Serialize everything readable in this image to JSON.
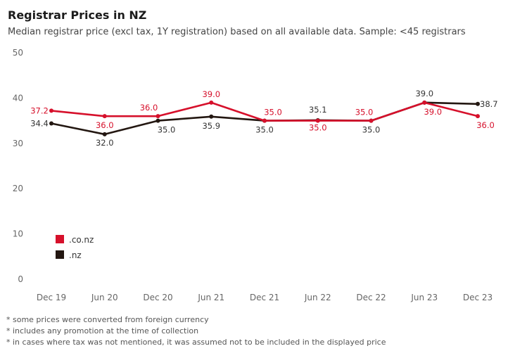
{
  "chart_data": {
    "type": "line",
    "title": "Registrar Prices in NZ",
    "subtitle": "Median registrar price (excl tax, 1Y registration) based on all available data. Sample: <45 registrars",
    "categories": [
      "Dec 19",
      "Jun 20",
      "Dec 20",
      "Jun 21",
      "Dec 21",
      "Jun 22",
      "Dec 22",
      "Jun 23",
      "Dec 23"
    ],
    "y_ticks": [
      0,
      10,
      20,
      30,
      40,
      50
    ],
    "ylim": [
      0,
      50
    ],
    "grid": false,
    "legend_position": "bottom-left",
    "series": [
      {
        "name": ".co.nz",
        "color": "#d6102b",
        "values": [
          37.2,
          36.0,
          36.0,
          39.0,
          35.0,
          35.0,
          35.0,
          39.0,
          36.0
        ],
        "labels": [
          "37.2",
          "36.0",
          "36.0",
          "39.0",
          "35.0",
          "35.0",
          "35.0",
          "39.0",
          "36.0"
        ]
      },
      {
        "name": ".nz",
        "color": "#231711",
        "values": [
          34.4,
          32.0,
          35.0,
          35.9,
          35.0,
          35.1,
          35.0,
          39.0,
          38.7
        ],
        "labels": [
          "34.4",
          "32.0",
          "35.0",
          "35.9",
          "35.0",
          "35.1",
          "35.0",
          "39.0",
          "38.7"
        ]
      }
    ]
  },
  "notes": [
    "* some prices were converted from foreign currency",
    "* includes any promotion at the time of collection",
    "* in cases where tax was not mentioned, it was assumed not to be included in the displayed price"
  ]
}
